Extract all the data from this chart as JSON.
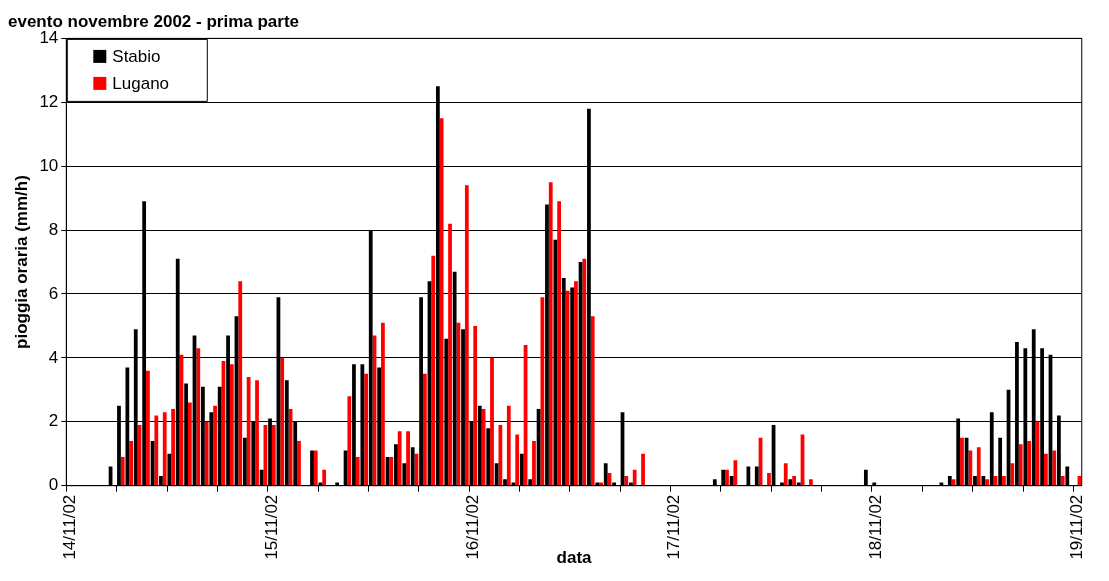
{
  "chart_data": {
    "type": "bar",
    "title": "evento novembre 2002 - prima parte",
    "xlabel": "data",
    "ylabel": "pioggia oraria (mm/h)",
    "categories": [
      "14/11/02",
      null,
      null,
      null,
      null,
      null,
      null,
      null,
      null,
      null,
      null,
      null,
      null,
      null,
      null,
      null,
      null,
      null,
      null,
      null,
      null,
      null,
      null,
      null,
      "15/11/02",
      null,
      null,
      null,
      null,
      null,
      null,
      null,
      null,
      null,
      null,
      null,
      null,
      null,
      null,
      null,
      null,
      null,
      null,
      null,
      null,
      null,
      null,
      null,
      "16/11/02",
      null,
      null,
      null,
      null,
      null,
      null,
      null,
      null,
      null,
      null,
      null,
      null,
      null,
      null,
      null,
      null,
      null,
      null,
      null,
      null,
      null,
      null,
      null,
      "17/11/02",
      null,
      null,
      null,
      null,
      null,
      null,
      null,
      null,
      null,
      null,
      null,
      null,
      null,
      null,
      null,
      null,
      null,
      null,
      null,
      null,
      null,
      null,
      null,
      "18/11/02",
      null,
      null,
      null,
      null,
      null,
      null,
      null,
      null,
      null,
      null,
      null,
      null,
      null,
      null,
      null,
      null,
      null,
      null,
      null,
      null,
      null,
      null,
      null,
      "19/11/02"
    ],
    "series": [
      {
        "name": "Stabio",
        "color": "#000000",
        "values": [
          0,
          0,
          0,
          0,
          0,
          0.6,
          2.5,
          3.7,
          4.9,
          8.9,
          1.4,
          0.3,
          1.0,
          7.1,
          3.2,
          4.7,
          3.1,
          2.3,
          3.1,
          4.7,
          5.3,
          1.5,
          2.0,
          0.5,
          2.1,
          5.9,
          3.3,
          2.0,
          0,
          1.1,
          0.1,
          0,
          0.1,
          1.1,
          3.8,
          3.8,
          8.0,
          3.7,
          0.9,
          1.3,
          0.7,
          1.2,
          5.9,
          6.4,
          12.5,
          4.6,
          6.7,
          4.9,
          2.0,
          2.5,
          1.8,
          0.7,
          0.2,
          0.1,
          1.0,
          0.2,
          2.4,
          8.8,
          7.7,
          6.5,
          6.2,
          7.0,
          11.8,
          0.1,
          0.7,
          0.1,
          2.3,
          0.1,
          0,
          0,
          0,
          0,
          0,
          0,
          0,
          0,
          0,
          0.2,
          0.5,
          0.3,
          0,
          0.6,
          0.6,
          0,
          1.9,
          0.1,
          0.2,
          0.1,
          0,
          0,
          0,
          0,
          0,
          0,
          0,
          0.5,
          0.1,
          0,
          0,
          0,
          0,
          0,
          0,
          0,
          0.1,
          0.3,
          2.1,
          1.5,
          0.3,
          0.3,
          2.3,
          1.5,
          3.0,
          4.5,
          4.3,
          4.9,
          4.3,
          4.1,
          2.2,
          0.6,
          0
        ]
      },
      {
        "name": "Lugano",
        "color": "#ff0000",
        "values": [
          0,
          0,
          0,
          0,
          0,
          0,
          0.9,
          1.4,
          1.9,
          3.6,
          2.2,
          2.3,
          2.4,
          4.1,
          2.6,
          4.3,
          2.0,
          2.5,
          3.9,
          3.8,
          6.4,
          3.4,
          3.3,
          1.9,
          1.9,
          4.0,
          2.4,
          1.4,
          0,
          1.1,
          0.5,
          0,
          0,
          2.8,
          0.9,
          3.5,
          4.7,
          5.1,
          0.9,
          1.7,
          1.7,
          1.0,
          3.5,
          7.2,
          11.5,
          8.2,
          5.1,
          9.4,
          5.0,
          2.4,
          4.0,
          1.9,
          2.5,
          1.6,
          4.4,
          1.4,
          5.9,
          9.5,
          8.9,
          6.1,
          6.4,
          7.1,
          5.3,
          0.1,
          0.4,
          0,
          0.3,
          0.5,
          1.0,
          0,
          0,
          0,
          0,
          0,
          0,
          0,
          0,
          0,
          0.5,
          0.8,
          0,
          0,
          1.5,
          0.4,
          0,
          0.7,
          0.3,
          1.6,
          0.2,
          0,
          0,
          0,
          0,
          0,
          0,
          0,
          0,
          0,
          0,
          0,
          0,
          0,
          0,
          0,
          0,
          0.2,
          1.5,
          1.1,
          1.2,
          0.2,
          0.3,
          0.3,
          0.7,
          1.3,
          1.4,
          2.0,
          1.0,
          1.1,
          0.3,
          0,
          0.3
        ]
      }
    ],
    "ylim": [
      0,
      14
    ],
    "yticks": [
      0,
      2,
      4,
      6,
      8,
      10,
      12,
      14
    ],
    "grid": "y",
    "legend": "top left"
  }
}
